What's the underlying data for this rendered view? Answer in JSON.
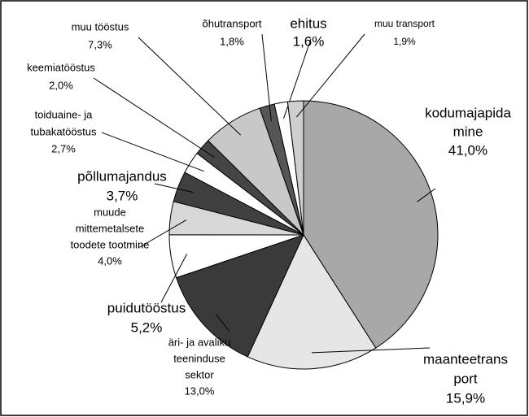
{
  "chart_data": {
    "type": "pie",
    "categories": [
      [
        "kodumajapida",
        "mine"
      ],
      [
        "maanteetrans",
        "port"
      ],
      [
        "äri- ja avaliku",
        "teeninduse",
        "sektor"
      ],
      [
        "puidutööstus"
      ],
      [
        "muude",
        "mittemetalsete",
        "toodete tootmine"
      ],
      [
        "põllumajandus"
      ],
      [
        "toiduaine- ja",
        "tubakatööstus"
      ],
      [
        "keemiatööstus"
      ],
      [
        "muu tööstus"
      ],
      [
        "õhutransport"
      ],
      [
        "ehitus"
      ],
      [
        "muu transport"
      ]
    ],
    "values": [
      41.0,
      15.9,
      13.0,
      5.2,
      4.0,
      3.7,
      2.7,
      2.0,
      7.3,
      1.8,
      1.6,
      1.9
    ],
    "value_labels": [
      "41,0%",
      "15,9%",
      "13,0%",
      "5,2%",
      "4,0%",
      "3,7%",
      "2,7%",
      "2,0%",
      "7,3%",
      "1,8%",
      "1,6%",
      "1,9%"
    ],
    "colors": [
      "#a8a8a8",
      "#e6e6e6",
      "#3a3a3a",
      "#ffffff",
      "#d8d8d8",
      "#404040",
      "#ffffff",
      "#454545",
      "#c8c8c8",
      "#555555",
      "#ffffff",
      "#cfcfcf"
    ]
  }
}
